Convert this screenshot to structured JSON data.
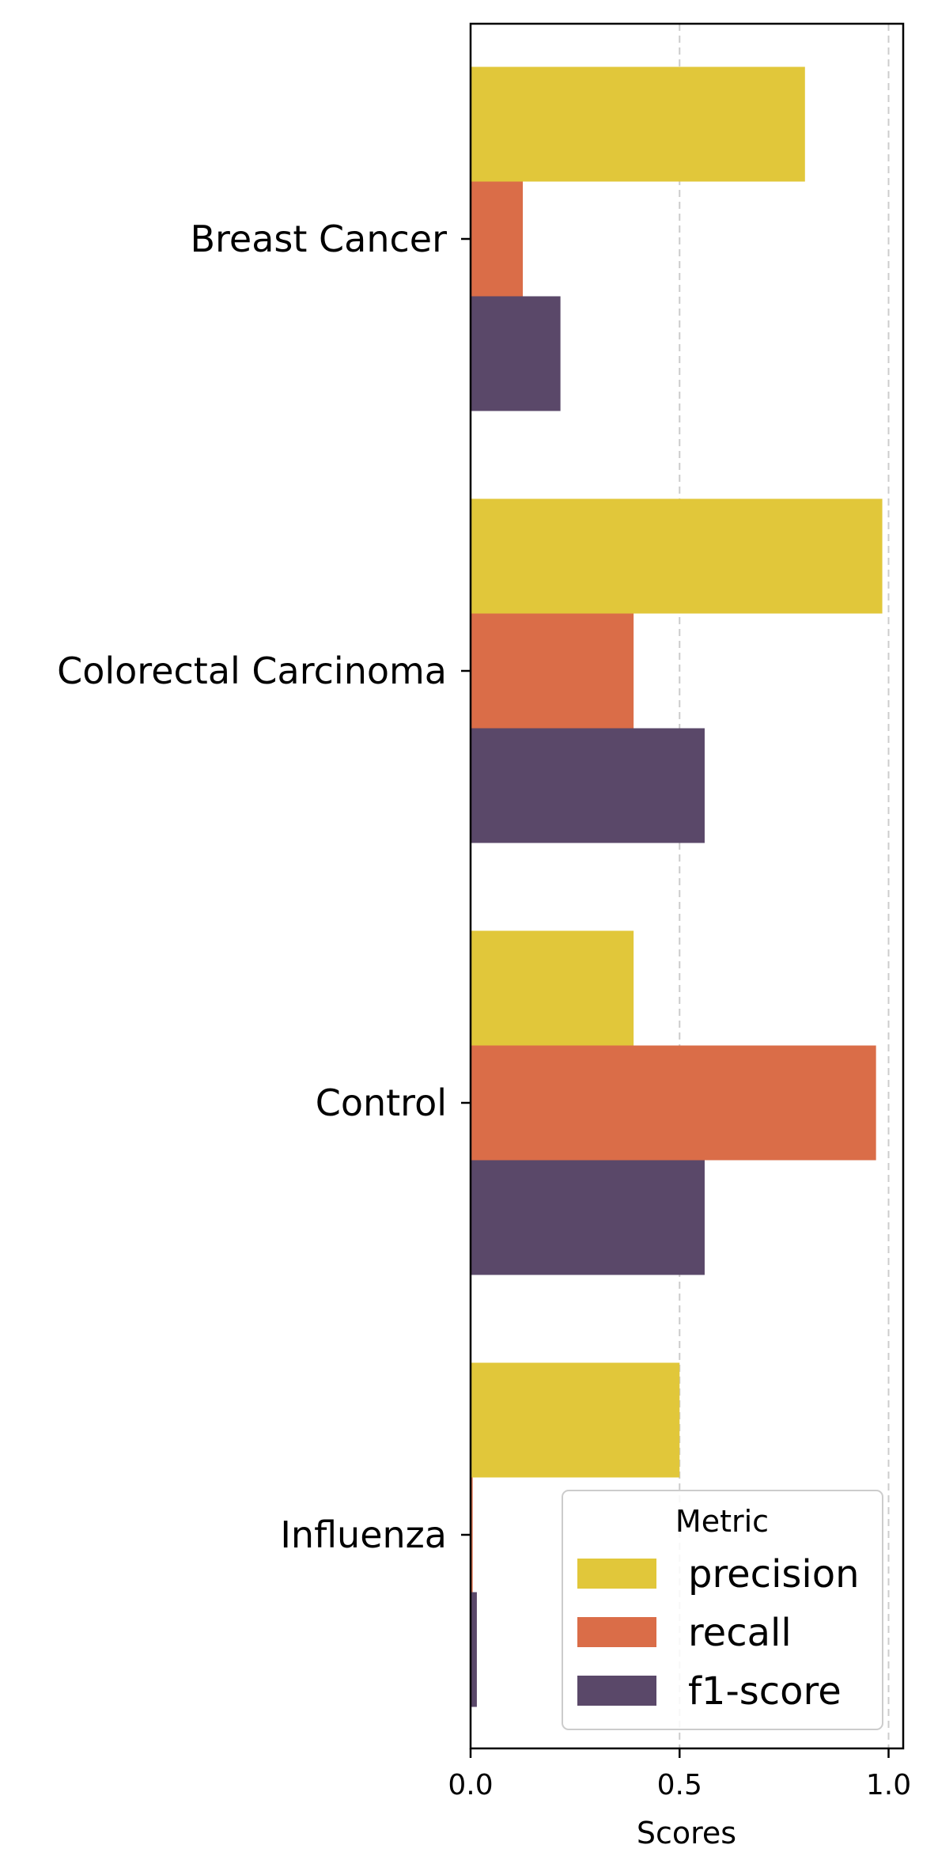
{
  "chart_data": {
    "type": "bar",
    "orientation": "horizontal",
    "categories": [
      "Breast Cancer",
      "Colorectal Carcinoma",
      "Control",
      "Influenza"
    ],
    "series": [
      {
        "name": "precision",
        "values": [
          0.8,
          0.985,
          0.39,
          0.5
        ],
        "color": "#E1C73A"
      },
      {
        "name": "recall",
        "values": [
          0.125,
          0.39,
          0.97,
          0.005
        ],
        "color": "#DA6D48"
      },
      {
        "name": "f1-score",
        "values": [
          0.215,
          0.56,
          0.56,
          0.015
        ],
        "color": "#5A4869"
      }
    ],
    "xlabel": "Scores",
    "ylabel": "",
    "xlim": [
      0,
      1.035
    ],
    "xticks": [
      "0.0",
      "0.5",
      "1.0"
    ],
    "xtick_values": [
      0,
      0.5,
      1.0
    ],
    "grid": "x dashed at 0.5 and 1.0",
    "legend": {
      "title": "Metric",
      "placement": "lower-right"
    }
  }
}
